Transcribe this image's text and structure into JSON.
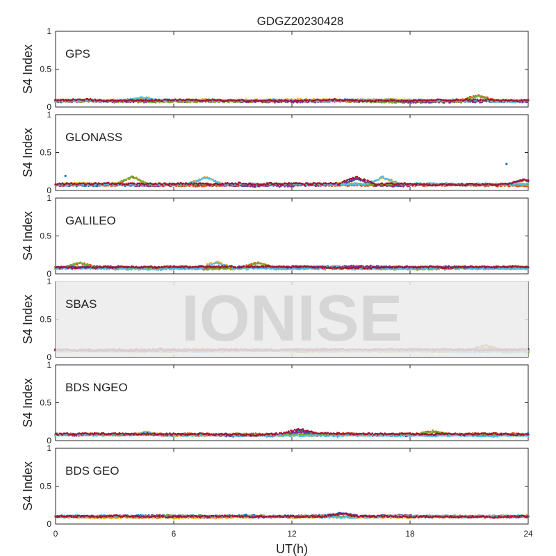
{
  "title": "GDGZ20230428",
  "watermark": "IONISE",
  "chart_data": {
    "type": "scatter",
    "title": "GDGZ20230428",
    "xlabel": "UT(h)",
    "ylabel": "S4 Index",
    "xlim": [
      0,
      24
    ],
    "ylim": [
      0,
      1
    ],
    "xticks": [
      "0",
      "6",
      "12",
      "18",
      "24"
    ],
    "yticks": [
      "0",
      "0.5",
      "1"
    ],
    "grid": false,
    "panels": [
      {
        "label": "GPS",
        "baseline": 0.08,
        "spread": 0.025,
        "bumps": [
          {
            "x": 21.5,
            "y": 0.15
          },
          {
            "x": 4.5,
            "y": 0.12
          }
        ]
      },
      {
        "label": "GLONASS",
        "baseline": 0.08,
        "spread": 0.025,
        "bumps": [
          {
            "x": 3.9,
            "y": 0.19
          },
          {
            "x": 7.6,
            "y": 0.17
          },
          {
            "x": 15.3,
            "y": 0.17
          },
          {
            "x": 16.6,
            "y": 0.17
          },
          {
            "x": 23.8,
            "y": 0.15
          }
        ],
        "outliers": [
          {
            "x": 22.9,
            "y": 0.35
          },
          {
            "x": 0.5,
            "y": 0.19
          }
        ]
      },
      {
        "label": "GALILEO",
        "baseline": 0.08,
        "spread": 0.025,
        "bumps": [
          {
            "x": 1.2,
            "y": 0.15
          },
          {
            "x": 8.2,
            "y": 0.15
          },
          {
            "x": 10.3,
            "y": 0.15
          },
          {
            "x": 14.2,
            "y": 0.1
          }
        ]
      },
      {
        "label": "SBAS",
        "baseline": 0.09,
        "spread": 0.02,
        "bumps": [
          {
            "x": 21.8,
            "y": 0.14
          }
        ]
      },
      {
        "label": "BDS NGEO",
        "baseline": 0.08,
        "spread": 0.02,
        "bumps": [
          {
            "x": 4.6,
            "y": 0.12
          },
          {
            "x": 12.4,
            "y": 0.13
          },
          {
            "x": 19.2,
            "y": 0.12
          }
        ]
      },
      {
        "label": "BDS GEO",
        "baseline": 0.1,
        "spread": 0.012,
        "bumps": [
          {
            "x": 14.5,
            "y": 0.14
          }
        ]
      }
    ],
    "series_colors": [
      "#0072BD",
      "#D95319",
      "#EDB120",
      "#7E2F8E",
      "#77AC30",
      "#4DBEEE",
      "#A2142F"
    ]
  }
}
